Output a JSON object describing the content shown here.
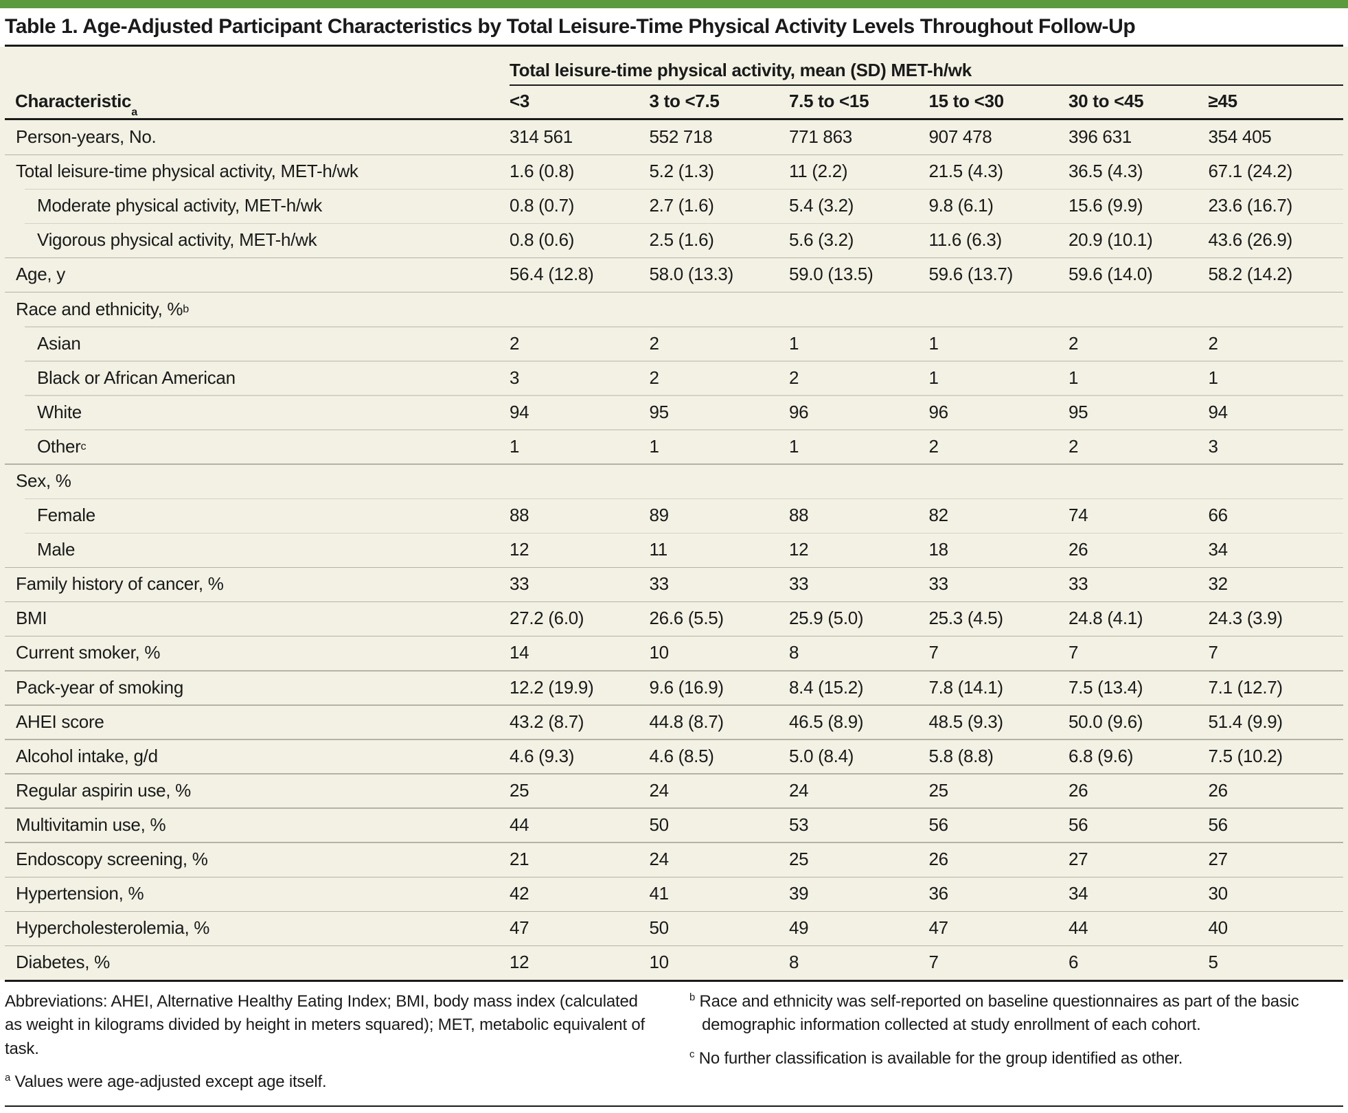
{
  "title": "Table 1. Age-Adjusted Participant Characteristics by Total Leisure-Time Physical Activity Levels Throughout Follow-Up",
  "colors": {
    "accent_green": "#5b9b3e",
    "table_background": "#f2f1e4",
    "rule_black": "#1a1a1a",
    "separator_full": "#b3b2a4",
    "separator_indent": "#d3d2c4"
  },
  "table": {
    "header": {
      "characteristic_label": "Characteristic",
      "characteristic_sup": "a",
      "spanner": "Total leisure-time physical activity, mean (SD) MET-h/wk",
      "columns": [
        "<3",
        "3 to <7.5",
        "7.5 to <15",
        "15 to <30",
        "30 to <45",
        "≥45"
      ]
    },
    "rows": [
      {
        "label": "Person-years, No.",
        "indent": false,
        "sep": "none",
        "values": [
          "314 561",
          "552 718",
          "771 863",
          "907 478",
          "396 631",
          "354 405"
        ]
      },
      {
        "label": "Total leisure-time physical activity, MET-h/wk",
        "indent": false,
        "sep": "full",
        "values": [
          "1.6 (0.8)",
          "5.2 (1.3)",
          "11 (2.2)",
          "21.5 (4.3)",
          "36.5 (4.3)",
          "67.1 (24.2)"
        ]
      },
      {
        "label": "Moderate physical activity, MET-h/wk",
        "indent": true,
        "sep": "indent",
        "values": [
          "0.8 (0.7)",
          "2.7 (1.6)",
          "5.4 (3.2)",
          "9.8 (6.1)",
          "15.6 (9.9)",
          "23.6 (16.7)"
        ]
      },
      {
        "label": "Vigorous physical activity, MET-h/wk",
        "indent": true,
        "sep": "indent",
        "values": [
          "0.8 (0.6)",
          "2.5 (1.6)",
          "5.6 (3.2)",
          "11.6 (6.3)",
          "20.9 (10.1)",
          "43.6 (26.9)"
        ]
      },
      {
        "label": "Age, y",
        "indent": false,
        "sep": "full",
        "values": [
          "56.4 (12.8)",
          "58.0 (13.3)",
          "59.0 (13.5)",
          "59.6 (13.7)",
          "59.6 (14.0)",
          "58.2 (14.2)"
        ]
      },
      {
        "label": "Race and ethnicity, %",
        "sup": "b",
        "indent": false,
        "sep": "full",
        "values": [
          "",
          "",
          "",
          "",
          "",
          ""
        ]
      },
      {
        "label": "Asian",
        "indent": true,
        "sep": "indent",
        "values": [
          "2",
          "2",
          "1",
          "1",
          "2",
          "2"
        ]
      },
      {
        "label": "Black or African American",
        "indent": true,
        "sep": "indent",
        "values": [
          "3",
          "2",
          "2",
          "1",
          "1",
          "1"
        ]
      },
      {
        "label": "White",
        "indent": true,
        "sep": "indent",
        "values": [
          "94",
          "95",
          "96",
          "96",
          "95",
          "94"
        ]
      },
      {
        "label": "Other",
        "sup": "c",
        "indent": true,
        "sep": "indent",
        "values": [
          "1",
          "1",
          "1",
          "2",
          "2",
          "3"
        ]
      },
      {
        "label": "Sex, %",
        "indent": false,
        "sep": "full",
        "values": [
          "",
          "",
          "",
          "",
          "",
          ""
        ]
      },
      {
        "label": "Female",
        "indent": true,
        "sep": "indent",
        "values": [
          "88",
          "89",
          "88",
          "82",
          "74",
          "66"
        ]
      },
      {
        "label": "Male",
        "indent": true,
        "sep": "indent",
        "values": [
          "12",
          "11",
          "12",
          "18",
          "26",
          "34"
        ]
      },
      {
        "label": "Family history of cancer, %",
        "indent": false,
        "sep": "full",
        "values": [
          "33",
          "33",
          "33",
          "33",
          "33",
          "32"
        ]
      },
      {
        "label": "BMI",
        "indent": false,
        "sep": "full",
        "values": [
          "27.2 (6.0)",
          "26.6 (5.5)",
          "25.9 (5.0)",
          "25.3 (4.5)",
          "24.8 (4.1)",
          "24.3 (3.9)"
        ]
      },
      {
        "label": "Current smoker, %",
        "indent": false,
        "sep": "full",
        "values": [
          "14",
          "10",
          "8",
          "7",
          "7",
          "7"
        ]
      },
      {
        "label": "Pack-year of smoking",
        "indent": false,
        "sep": "full",
        "values": [
          "12.2 (19.9)",
          "9.6 (16.9)",
          "8.4 (15.2)",
          "7.8 (14.1)",
          "7.5 (13.4)",
          "7.1 (12.7)"
        ]
      },
      {
        "label": "AHEI score",
        "indent": false,
        "sep": "full",
        "values": [
          "43.2 (8.7)",
          "44.8 (8.7)",
          "46.5 (8.9)",
          "48.5 (9.3)",
          "50.0 (9.6)",
          "51.4 (9.9)"
        ]
      },
      {
        "label": "Alcohol intake, g/d",
        "indent": false,
        "sep": "full",
        "values": [
          "4.6 (9.3)",
          "4.6 (8.5)",
          "5.0 (8.4)",
          "5.8 (8.8)",
          "6.8 (9.6)",
          "7.5 (10.2)"
        ]
      },
      {
        "label": "Regular aspirin use, %",
        "indent": false,
        "sep": "full",
        "values": [
          "25",
          "24",
          "24",
          "25",
          "26",
          "26"
        ]
      },
      {
        "label": "Multivitamin use, %",
        "indent": false,
        "sep": "full",
        "values": [
          "44",
          "50",
          "53",
          "56",
          "56",
          "56"
        ]
      },
      {
        "label": "Endoscopy screening, %",
        "indent": false,
        "sep": "full",
        "values": [
          "21",
          "24",
          "25",
          "26",
          "27",
          "27"
        ]
      },
      {
        "label": "Hypertension, %",
        "indent": false,
        "sep": "full",
        "values": [
          "42",
          "41",
          "39",
          "36",
          "34",
          "30"
        ]
      },
      {
        "label": "Hypercholesterolemia, %",
        "indent": false,
        "sep": "full",
        "values": [
          "47",
          "50",
          "49",
          "47",
          "44",
          "40"
        ]
      },
      {
        "label": "Diabetes, %",
        "indent": false,
        "sep": "full",
        "values": [
          "12",
          "10",
          "8",
          "7",
          "6",
          "5"
        ]
      }
    ]
  },
  "footnotes": {
    "left": [
      {
        "marker": "",
        "text": "Abbreviations: AHEI, Alternative Healthy Eating Index; BMI, body mass index (calculated as weight in kilograms divided by height in meters squared); MET, metabolic equivalent of task."
      },
      {
        "marker": "a",
        "text": "Values were age-adjusted except age itself."
      }
    ],
    "right": [
      {
        "marker": "b",
        "text": "Race and ethnicity was self-reported on baseline questionnaires as part of the basic demographic information collected at study enrollment of each cohort."
      },
      {
        "marker": "c",
        "text": "No further classification is available for the group identified as other."
      }
    ]
  }
}
